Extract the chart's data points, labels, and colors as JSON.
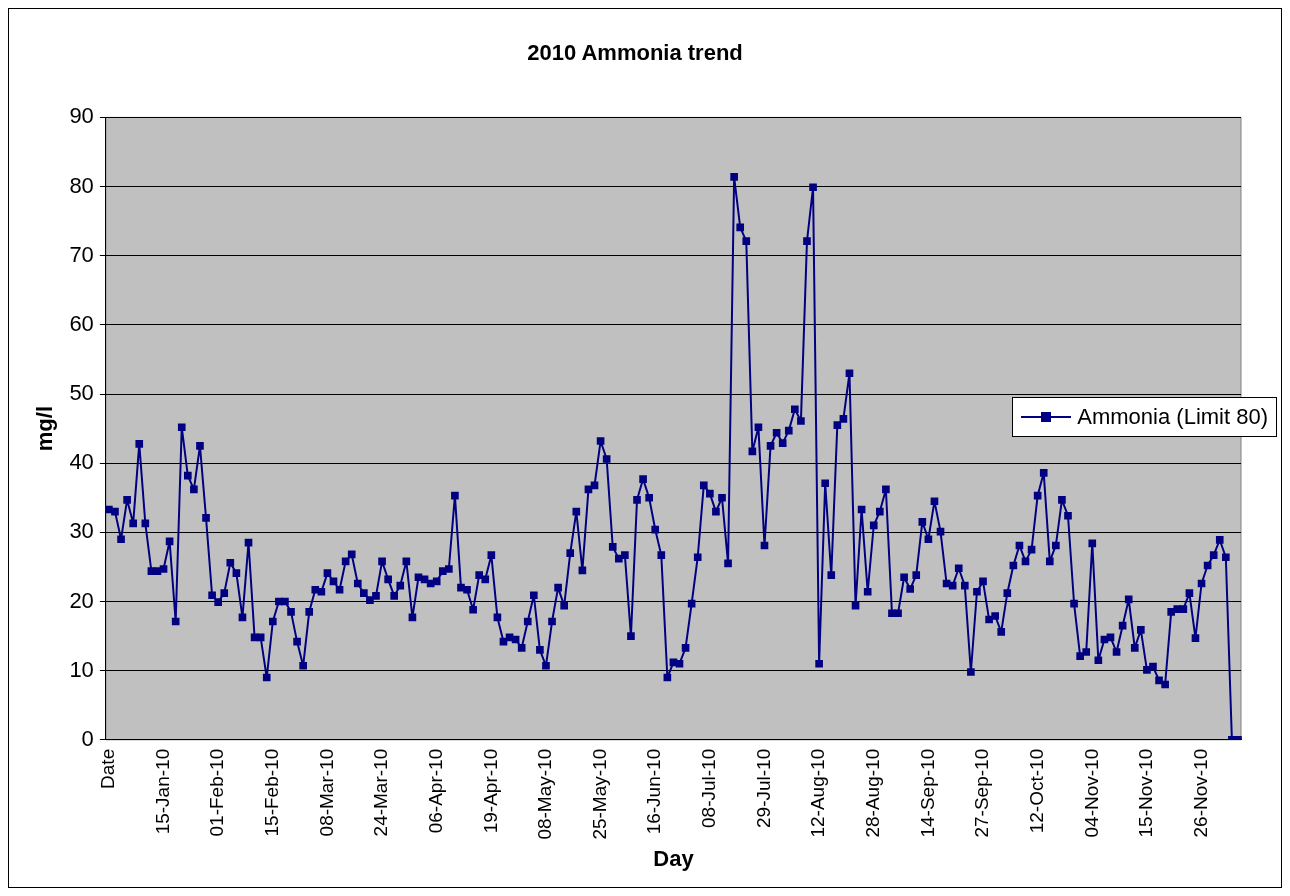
{
  "chart_data": {
    "type": "line",
    "title": "2010 Ammonia trend",
    "xlabel": "Day",
    "ylabel": "mg/l",
    "categories": [
      "Date",
      null,
      null,
      null,
      null,
      null,
      null,
      null,
      null,
      "15-Jan-10",
      null,
      null,
      null,
      null,
      null,
      null,
      null,
      null,
      "01-Feb-10",
      null,
      null,
      null,
      null,
      null,
      null,
      null,
      null,
      "15-Feb-10",
      null,
      null,
      null,
      null,
      null,
      null,
      null,
      null,
      "08-Mar-10",
      null,
      null,
      null,
      null,
      null,
      null,
      null,
      null,
      "24-Mar-10",
      null,
      null,
      null,
      null,
      null,
      null,
      null,
      null,
      "06-Apr-10",
      null,
      null,
      null,
      null,
      null,
      null,
      null,
      null,
      "19-Apr-10",
      null,
      null,
      null,
      null,
      null,
      null,
      null,
      null,
      "08-May-10",
      null,
      null,
      null,
      null,
      null,
      null,
      null,
      null,
      "25-May-10",
      null,
      null,
      null,
      null,
      null,
      null,
      null,
      null,
      "16-Jun-10",
      null,
      null,
      null,
      null,
      null,
      null,
      null,
      null,
      "08-Jul-10",
      null,
      null,
      null,
      null,
      null,
      null,
      null,
      null,
      "29-Jul-10",
      null,
      null,
      null,
      null,
      null,
      null,
      null,
      null,
      "12-Aug-10",
      null,
      null,
      null,
      null,
      null,
      null,
      null,
      null,
      "28-Aug-10",
      null,
      null,
      null,
      null,
      null,
      null,
      null,
      null,
      "14-Sep-10",
      null,
      null,
      null,
      null,
      null,
      null,
      null,
      null,
      "27-Sep-10",
      null,
      null,
      null,
      null,
      null,
      null,
      null,
      null,
      "12-Oct-10",
      null,
      null,
      null,
      null,
      null,
      null,
      null,
      null,
      "04-Nov-10",
      null,
      null,
      null,
      null,
      null,
      null,
      null,
      null,
      "15-Nov-10",
      null,
      null,
      null,
      null,
      null,
      null,
      null,
      null,
      "26-Nov-10",
      null,
      null,
      null,
      null,
      null,
      null
    ],
    "series": [
      {
        "name": "Ammonia (Limit 80)",
        "color": "#000080",
        "values": [
          33.3,
          33.0,
          29.0,
          34.7,
          31.3,
          42.8,
          31.3,
          24.4,
          24.4,
          24.7,
          28.7,
          17.1,
          45.2,
          38.2,
          36.2,
          42.5,
          32.1,
          20.9,
          19.9,
          21.2,
          25.6,
          24.1,
          17.7,
          28.5,
          14.8,
          14.8,
          9.0,
          17.1,
          20.0,
          20.0,
          18.5,
          14.2,
          10.7,
          18.5,
          21.7,
          21.4,
          24.1,
          22.9,
          21.7,
          25.8,
          26.8,
          22.6,
          21.2,
          20.2,
          20.8,
          25.8,
          23.2,
          20.8,
          22.3,
          25.8,
          17.7,
          23.5,
          23.2,
          22.6,
          22.9,
          24.4,
          24.7,
          35.3,
          22.0,
          21.7,
          18.8,
          23.8,
          23.2,
          26.7,
          17.7,
          14.2,
          14.8,
          14.5,
          13.3,
          17.1,
          20.9,
          13.0,
          10.7,
          17.1,
          22.0,
          19.4,
          27.0,
          33.0,
          24.5,
          36.2,
          36.8,
          43.2,
          40.6,
          27.9,
          26.2,
          26.7,
          15.0,
          34.7,
          37.7,
          35.0,
          30.4,
          26.7,
          9.0,
          11.2,
          11.0,
          13.3,
          19.7,
          26.4,
          36.8,
          35.6,
          33.0,
          35.0,
          25.5,
          81.4,
          74.1,
          72.1,
          41.7,
          45.2,
          28.1,
          42.5,
          44.4,
          42.9,
          44.7,
          47.8,
          46.1,
          72.1,
          79.9,
          11.0,
          37.1,
          23.8,
          45.5,
          46.4,
          53.0,
          19.4,
          33.3,
          21.4,
          31.0,
          33.0,
          36.2,
          18.3,
          18.3,
          23.5,
          21.8,
          23.8,
          31.5,
          29.0,
          34.5,
          30.1,
          22.6,
          22.3,
          24.8,
          22.3,
          9.8,
          21.4,
          22.9,
          17.4,
          17.9,
          15.6,
          21.2,
          25.2,
          28.1,
          25.8,
          27.5,
          35.3,
          38.6,
          25.8,
          28.1,
          34.7,
          32.4,
          19.7,
          12.1,
          12.7,
          28.4,
          11.5,
          14.5,
          14.8,
          12.7,
          16.5,
          20.3,
          13.3,
          15.9,
          10.1,
          10.6,
          8.6,
          8.0,
          18.5,
          18.9,
          18.9,
          21.2,
          14.7,
          22.6,
          25.2,
          26.7,
          28.9,
          26.4,
          0,
          0
        ]
      }
    ],
    "ylim": [
      0,
      90
    ],
    "yticks": [
      0,
      10,
      20,
      30,
      40,
      50,
      60,
      70,
      80,
      90
    ],
    "grid": "y",
    "legend": "right",
    "marker": "square",
    "line_style": "solid"
  }
}
